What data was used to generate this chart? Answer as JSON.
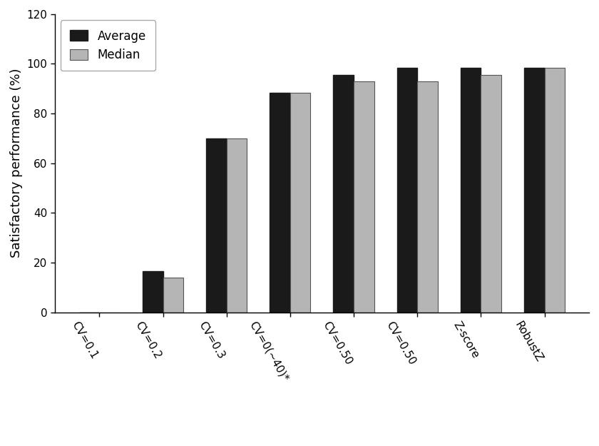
{
  "categories": [
    "CV=0.1",
    "CV=0.2",
    "CV=0.3",
    "CV=0(~40)*",
    "CV=0.50",
    "CV=0.50",
    "Z-score",
    "RobustZ"
  ],
  "average": [
    0,
    16.5,
    70,
    88.5,
    95.5,
    98.5,
    98.5,
    98.5
  ],
  "median": [
    0,
    14.0,
    70,
    88.5,
    93.0,
    93.0,
    95.5,
    98.5
  ],
  "bar_color_avg": "#1a1a1a",
  "bar_color_med": "#b5b5b5",
  "bar_edge_color": "#555555",
  "ylabel": "Satisfactory performance (%)",
  "ylim": [
    0,
    120
  ],
  "yticks": [
    0,
    20,
    40,
    60,
    80,
    100,
    120
  ],
  "legend_avg": "Average",
  "legend_med": "Median",
  "background_color": "#ffffff",
  "bar_width": 0.32,
  "rotation": -60,
  "ylabel_fontsize": 13,
  "xlabel_fontsize": 13,
  "tick_fontsize": 11,
  "legend_fontsize": 12
}
